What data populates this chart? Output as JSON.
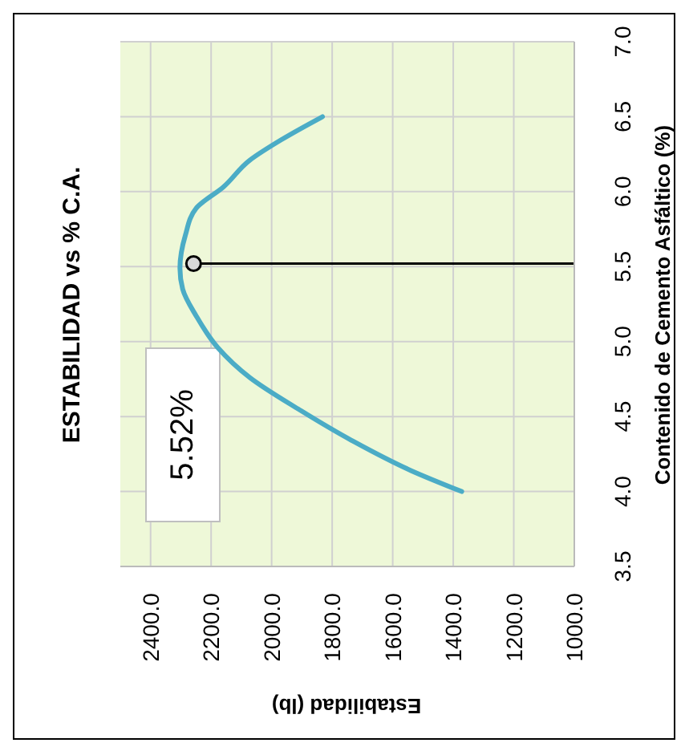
{
  "chart_data": {
    "type": "line",
    "title": "ESTABILIDAD vs % C.A.",
    "xlabel": "Estabilidad (lb)",
    "ylabel": "Contenido de Cemento Asfáltico (%)",
    "xlim": [
      2500,
      1000
    ],
    "xticks": [
      {
        "value": 2400,
        "label": "2400.0"
      },
      {
        "value": 2200,
        "label": "2200.0"
      },
      {
        "value": 2000,
        "label": "2000.0"
      },
      {
        "value": 1800,
        "label": "1800.0"
      },
      {
        "value": 1600,
        "label": "1600.0"
      },
      {
        "value": 1400,
        "label": "1400.0"
      },
      {
        "value": 1200,
        "label": "1200.0"
      },
      {
        "value": 1000,
        "label": "1000.0"
      }
    ],
    "ylim": [
      3.5,
      7.0
    ],
    "yticks": [
      {
        "value": 3.5,
        "label": "3.5"
      },
      {
        "value": 4,
        "label": "4.0"
      },
      {
        "value": 4.5,
        "label": "4.5"
      },
      {
        "value": 5,
        "label": "5.0"
      },
      {
        "value": 5.5,
        "label": "5.5"
      },
      {
        "value": 6,
        "label": "6.0"
      },
      {
        "value": 6.5,
        "label": "6.5"
      },
      {
        "value": 7,
        "label": "7.0"
      }
    ],
    "grid": true,
    "marker": "none",
    "line_style": "solid",
    "annotations": [
      "5.52%"
    ],
    "series": [
      {
        "type": "line",
        "color": "#4bacc6",
        "x": [
          1372,
          1540,
          1735,
          1912,
          2072,
          2178,
          2249,
          2294,
          2303,
          2285,
          2249,
          2160,
          2072,
          1965,
          1832
        ],
        "values": [
          4.0,
          4.14,
          4.34,
          4.55,
          4.76,
          4.96,
          5.17,
          5.35,
          5.49,
          5.71,
          5.89,
          6.03,
          6.21,
          6.35,
          6.5
        ]
      },
      {
        "type": "line",
        "color": "#000000",
        "x": [
          2258,
          1000
        ],
        "values": [
          5.52,
          5.52
        ]
      },
      {
        "type": "scatter",
        "color": "#d9d9d9",
        "x": [
          2258
        ],
        "values": [
          5.52
        ],
        "marker": "circle"
      }
    ]
  }
}
